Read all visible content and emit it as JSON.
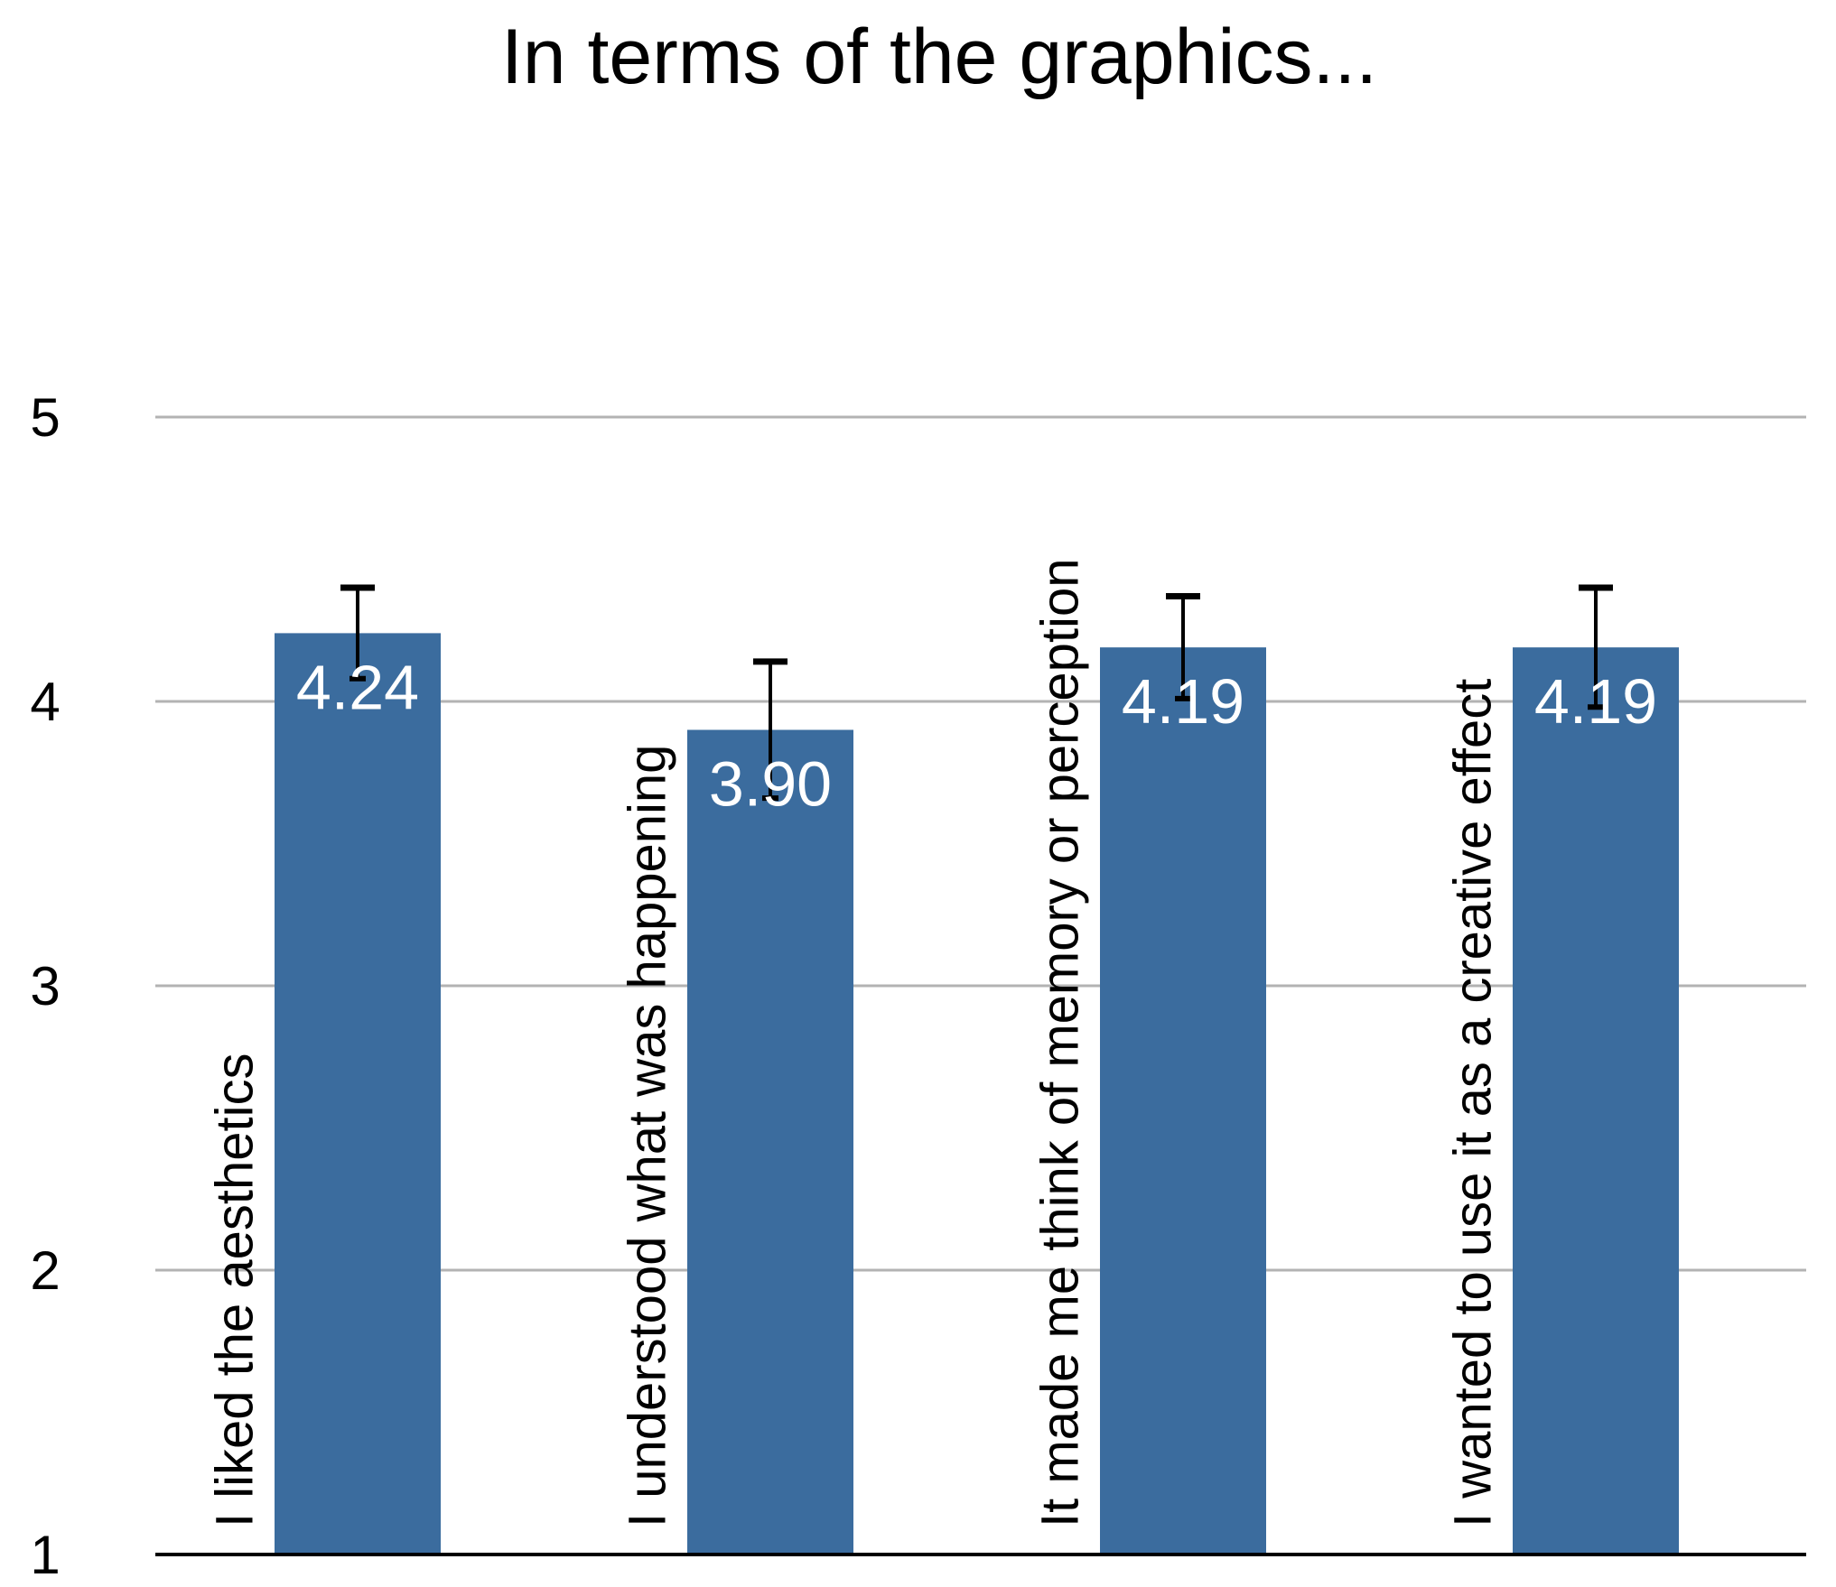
{
  "chart_data": {
    "type": "bar",
    "title": "In terms of the graphics...",
    "xlabel": "",
    "ylabel": "",
    "categories": [
      "I liked the aesthetics",
      "I understood what was happening",
      "It made me think of memory or perception",
      "I wanted to use it as a creative effect"
    ],
    "values": [
      4.24,
      3.9,
      4.19,
      4.19
    ],
    "data_labels": [
      "4.24",
      "3.90",
      "4.19",
      "4.19"
    ],
    "error_upper": [
      0.16,
      0.24,
      0.18,
      0.21
    ],
    "error_lower": [
      0.16,
      0.24,
      0.18,
      0.21
    ],
    "ylim": [
      1,
      5
    ],
    "yticks": [
      1,
      2,
      3,
      4,
      5
    ],
    "ytick_labels": [
      "1",
      "2",
      "3",
      "4",
      "5"
    ],
    "grid": true,
    "legend": "none",
    "colors": {
      "bar": "#3b6c9e",
      "grid": "#b3b3b3",
      "axis": "#000000",
      "error_bar": "#000000",
      "data_label": "#ffffff"
    }
  }
}
